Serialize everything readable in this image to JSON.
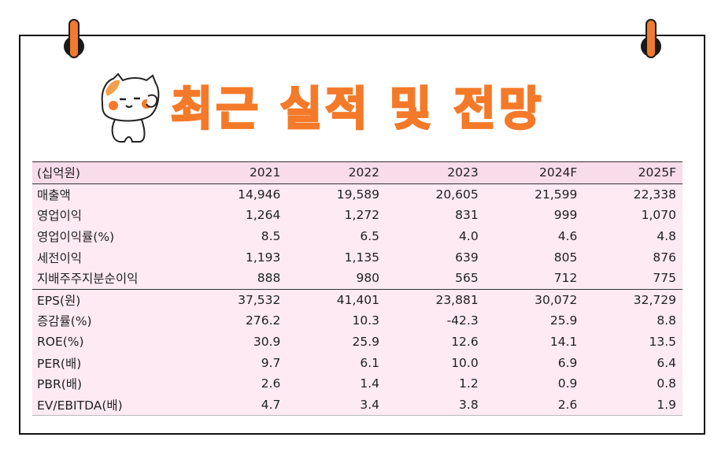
{
  "title": "최근 실적 및 전망",
  "colors": {
    "accent": "#f47a2a",
    "table_header_bg": "#f8dcea",
    "table_body_bg": "#fdeaf3",
    "border": "#111111"
  },
  "icons": {
    "left_pin": "binder-clip-icon",
    "right_pin": "binder-clip-icon",
    "mascot": "cat-mascot-icon"
  },
  "table": {
    "header": [
      "(십억원)",
      "2021",
      "2022",
      "2023",
      "2024F",
      "2025F"
    ],
    "rows": [
      [
        "매출액",
        "14,946",
        "19,589",
        "20,605",
        "21,599",
        "22,338"
      ],
      [
        "영업이익",
        "1,264",
        "1,272",
        "831",
        "999",
        "1,070"
      ],
      [
        "영업이익률(%)",
        "8.5",
        "6.5",
        "4.0",
        "4.6",
        "4.8"
      ],
      [
        "세전이익",
        "1,193",
        "1,135",
        "639",
        "805",
        "876"
      ],
      [
        "지배주주지분순이익",
        "888",
        "980",
        "565",
        "712",
        "775"
      ],
      [
        "EPS(원)",
        "37,532",
        "41,401",
        "23,881",
        "30,072",
        "32,729"
      ],
      [
        "증감률(%)",
        "276.2",
        "10.3",
        "-42.3",
        "25.9",
        "8.8"
      ],
      [
        "ROE(%)",
        "30.9",
        "25.9",
        "12.6",
        "14.1",
        "13.5"
      ],
      [
        "PER(배)",
        "9.7",
        "6.1",
        "10.0",
        "6.9",
        "6.4"
      ],
      [
        "PBR(배)",
        "2.6",
        "1.4",
        "1.2",
        "0.9",
        "0.8"
      ],
      [
        "EV/EBITDA(배)",
        "4.7",
        "3.4",
        "3.8",
        "2.6",
        "1.9"
      ]
    ]
  }
}
